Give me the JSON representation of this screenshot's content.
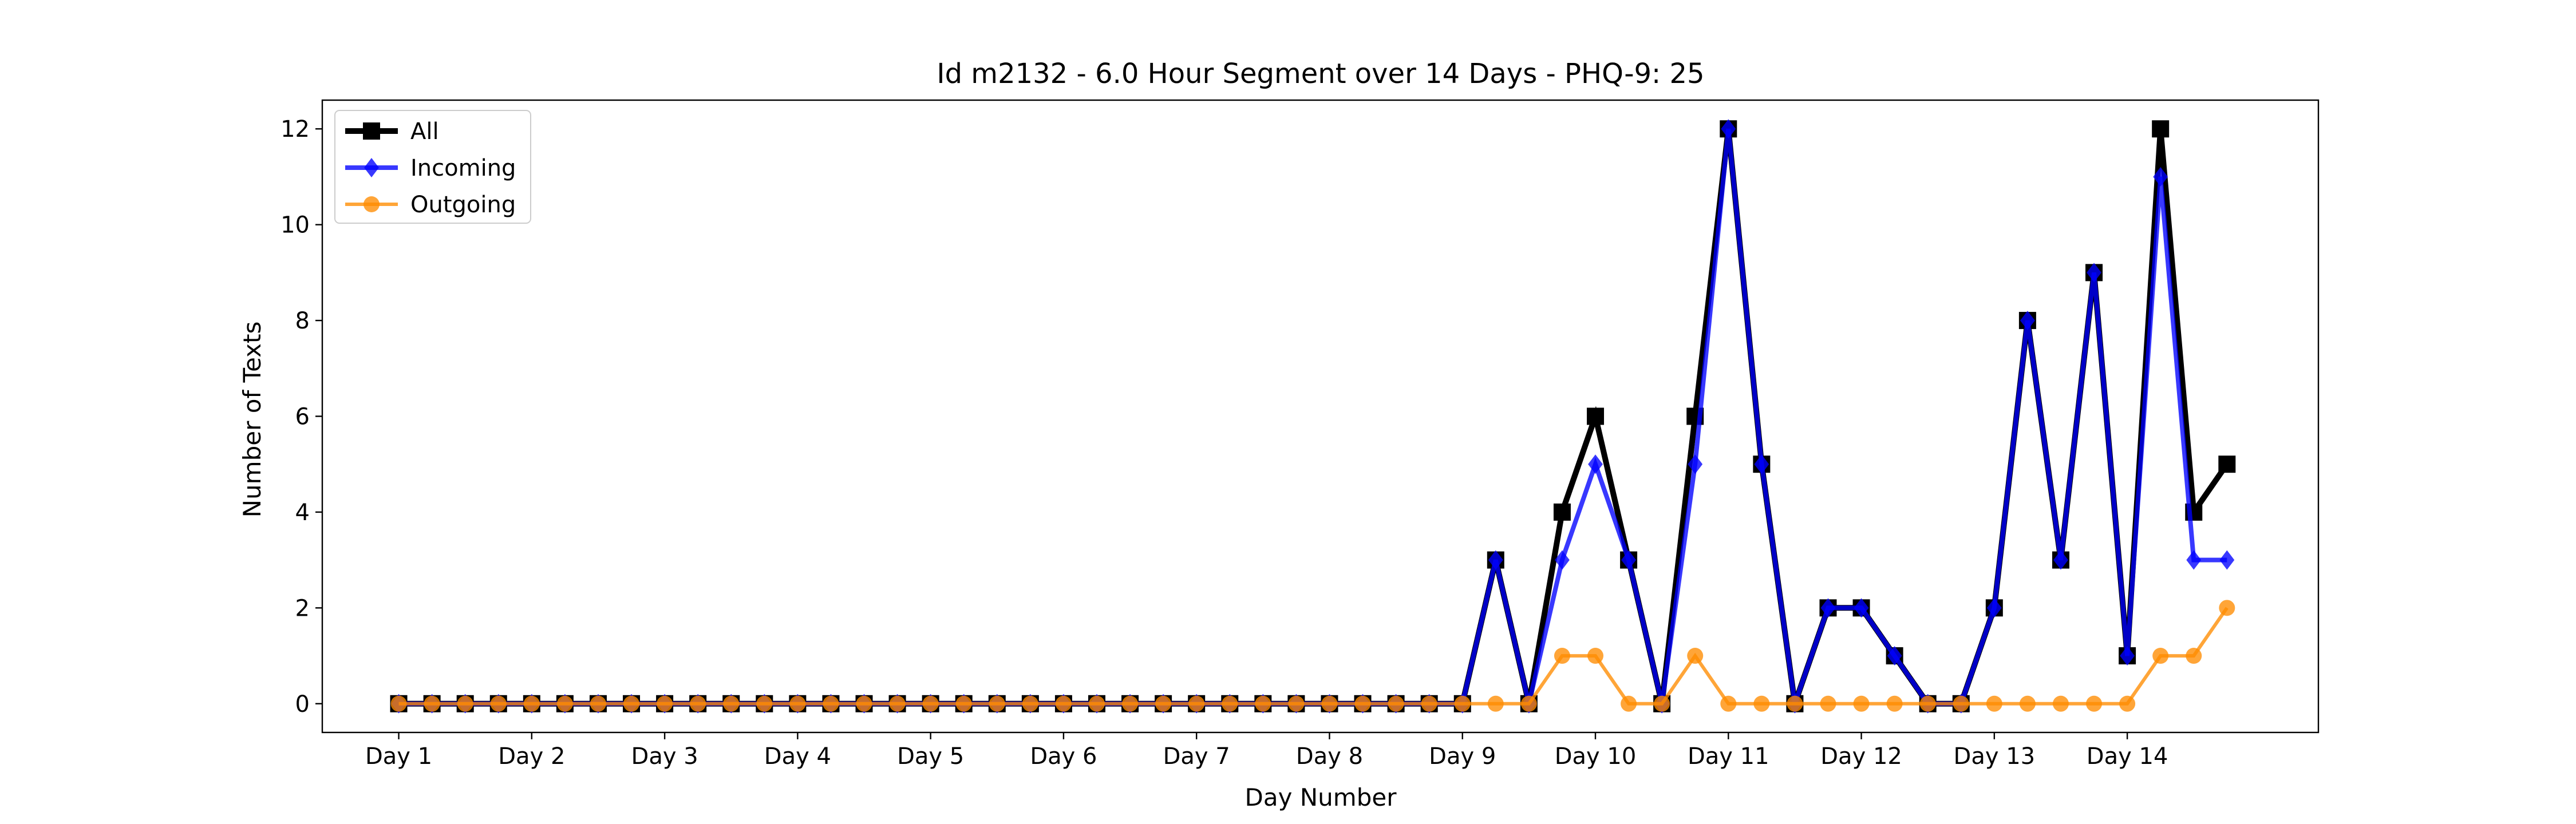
{
  "chart_data": {
    "type": "line",
    "title": "Id m2132 - 6.0 Hour Segment over 14 Days - PHQ-9: 25",
    "xlabel": "Day Number",
    "ylabel": "Number of Texts",
    "ylim": [
      -0.6,
      12.6
    ],
    "xlim": [
      -2.3,
      57.75
    ],
    "yticks": [
      0,
      2,
      4,
      6,
      8,
      10,
      12
    ],
    "xticks": [
      {
        "x": 0,
        "label": "Day 1"
      },
      {
        "x": 4,
        "label": "Day 2"
      },
      {
        "x": 8,
        "label": "Day 3"
      },
      {
        "x": 12,
        "label": "Day 4"
      },
      {
        "x": 16,
        "label": "Day 5"
      },
      {
        "x": 20,
        "label": "Day 6"
      },
      {
        "x": 24,
        "label": "Day 7"
      },
      {
        "x": 28,
        "label": "Day 8"
      },
      {
        "x": 32,
        "label": "Day 9"
      },
      {
        "x": 36,
        "label": "Day 10"
      },
      {
        "x": 40,
        "label": "Day 11"
      },
      {
        "x": 44,
        "label": "Day 12"
      },
      {
        "x": 48,
        "label": "Day 13"
      },
      {
        "x": 52,
        "label": "Day 14"
      }
    ],
    "grid": false,
    "legend_position": "top-left",
    "series": [
      {
        "name": "All",
        "color": "#000000",
        "marker": "square",
        "values": [
          0,
          0,
          0,
          0,
          0,
          0,
          0,
          0,
          0,
          0,
          0,
          0,
          0,
          0,
          0,
          0,
          0,
          0,
          0,
          0,
          0,
          0,
          0,
          0,
          0,
          0,
          0,
          0,
          0,
          0,
          0,
          0,
          0,
          3,
          0,
          4,
          6,
          3,
          0,
          6,
          12,
          5,
          0,
          2,
          2,
          1,
          0,
          0,
          2,
          8,
          3,
          9,
          1,
          12,
          4,
          5
        ]
      },
      {
        "name": "Incoming",
        "color": "#0000ff",
        "marker": "diamond",
        "values": [
          0,
          0,
          0,
          0,
          0,
          0,
          0,
          0,
          0,
          0,
          0,
          0,
          0,
          0,
          0,
          0,
          0,
          0,
          0,
          0,
          0,
          0,
          0,
          0,
          0,
          0,
          0,
          0,
          0,
          0,
          0,
          0,
          0,
          3,
          0,
          3,
          5,
          3,
          0,
          5,
          12,
          5,
          0,
          2,
          2,
          1,
          0,
          0,
          2,
          8,
          3,
          9,
          1,
          11,
          3,
          3
        ]
      },
      {
        "name": "Outgoing",
        "color": "#ff8c00",
        "marker": "circle",
        "values": [
          0,
          0,
          0,
          0,
          0,
          0,
          0,
          0,
          0,
          0,
          0,
          0,
          0,
          0,
          0,
          0,
          0,
          0,
          0,
          0,
          0,
          0,
          0,
          0,
          0,
          0,
          0,
          0,
          0,
          0,
          0,
          0,
          0,
          0,
          0,
          1,
          1,
          0,
          0,
          1,
          0,
          0,
          0,
          0,
          0,
          0,
          0,
          0,
          0,
          0,
          0,
          0,
          0,
          1,
          1,
          2
        ]
      }
    ]
  }
}
